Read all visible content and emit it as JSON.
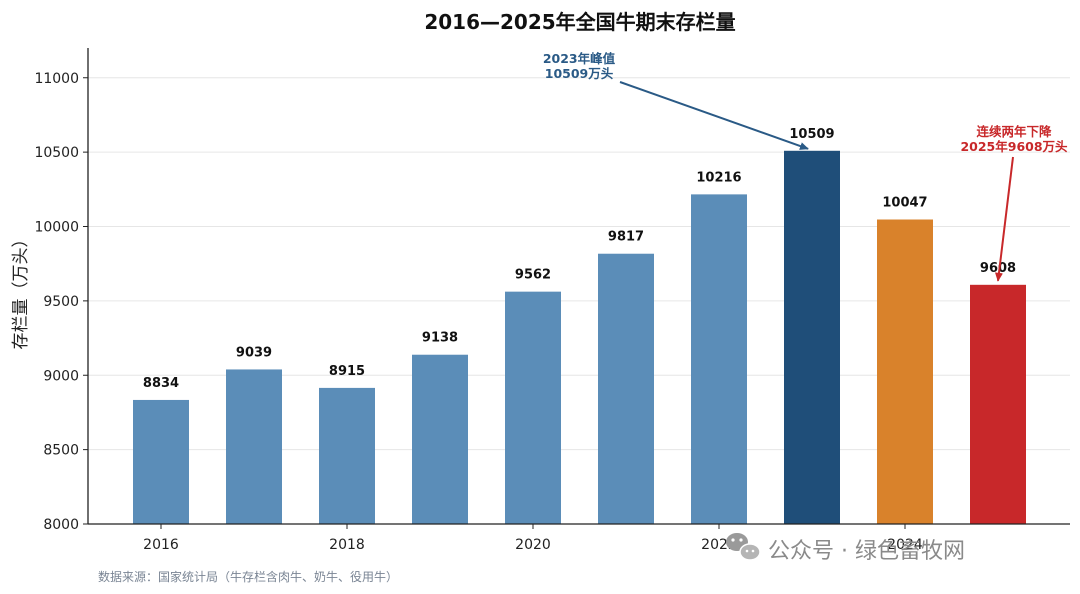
{
  "chart_data": {
    "type": "bar",
    "title": "2016—2025年全国牛期末存栏量",
    "ylabel": "存栏量（万头）",
    "xlabel": "",
    "categories": [
      "2016",
      "2017",
      "2018",
      "2019",
      "2020",
      "2021",
      "2022",
      "2023",
      "2024",
      "2025"
    ],
    "values": [
      8834,
      9039,
      8915,
      9138,
      9562,
      9817,
      10216,
      10509,
      10047,
      9608
    ],
    "data_labels": [
      "8834",
      "9039",
      "8915",
      "9138",
      "9562",
      "9817",
      "10216",
      "10509",
      "10047",
      "9608"
    ],
    "bar_colors": [
      "#5b8db8",
      "#5b8db8",
      "#5b8db8",
      "#5b8db8",
      "#5b8db8",
      "#5b8db8",
      "#5b8db8",
      "#1f4e79",
      "#d9822b",
      "#c8282a"
    ],
    "x_tick_labels": [
      "2016",
      "2018",
      "2020",
      "2022",
      "2024"
    ],
    "y_tick_values": [
      8000,
      8500,
      9000,
      9500,
      10000,
      10500,
      11000
    ],
    "y_tick_labels": [
      "8000",
      "8500",
      "9000",
      "9500",
      "10000",
      "10500",
      "11000"
    ],
    "ylim": [
      8000,
      11200
    ],
    "grid": "horizontal",
    "annotations": [
      {
        "lines": [
          "2023年峰值",
          "10509万头"
        ],
        "target_category": "2023",
        "color": "#2a5a86"
      },
      {
        "lines": [
          "连续两年下降",
          "2025年9608万头"
        ],
        "target_category": "2025",
        "color": "#c8282a"
      }
    ]
  },
  "source_note": "数据来源：国家统计局（牛存栏含肉牛、奶牛、役用牛）",
  "watermark": {
    "text": "公众号 · 绿色畜牧网",
    "icon": "wechat-icon"
  }
}
